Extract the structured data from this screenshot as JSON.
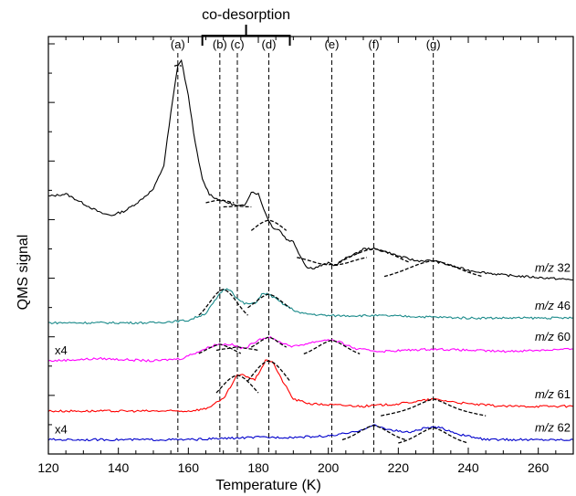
{
  "chart_data": {
    "type": "line",
    "title": "",
    "xlabel": "Temperature (K)",
    "ylabel": "QMS signal",
    "xlim": [
      120,
      270
    ],
    "x_ticks": [
      "120",
      "140",
      "160",
      "180",
      "200",
      "220",
      "240",
      "260"
    ],
    "y_tick_labels": "none",
    "grid": false,
    "top_annotation": "co-desorption",
    "peak_markers": [
      {
        "label": "(a)",
        "x": 157
      },
      {
        "label": "(b)",
        "x": 169
      },
      {
        "label": "(c)",
        "x": 174
      },
      {
        "label": "(d)",
        "x": 183
      },
      {
        "label": "(e)",
        "x": 201
      },
      {
        "label": "(f)",
        "x": 213
      },
      {
        "label": "(g)",
        "x": 230
      }
    ],
    "co_desorption_range": [
      164,
      189
    ],
    "series": [
      {
        "name": "m/z 32",
        "label_prefix": "m/z",
        "label_value": "32",
        "color": "#000000",
        "points": [
          [
            120,
            203
          ],
          [
            125,
            204
          ],
          [
            130,
            200
          ],
          [
            135,
            196
          ],
          [
            138,
            195
          ],
          [
            142,
            197
          ],
          [
            146,
            201
          ],
          [
            150,
            206
          ],
          [
            153,
            216
          ],
          [
            155,
            238
          ],
          [
            157,
            258
          ],
          [
            158,
            260
          ],
          [
            160,
            245
          ],
          [
            162,
            225
          ],
          [
            164,
            210
          ],
          [
            166,
            204
          ],
          [
            168,
            202
          ],
          [
            170,
            201
          ],
          [
            172,
            200
          ],
          [
            174,
            199
          ],
          [
            176,
            199
          ],
          [
            178,
            205
          ],
          [
            180,
            204
          ],
          [
            182,
            196
          ],
          [
            184,
            190
          ],
          [
            186,
            189
          ],
          [
            188,
            185
          ],
          [
            190,
            184
          ],
          [
            192,
            178
          ],
          [
            194,
            173
          ],
          [
            196,
            173
          ],
          [
            198,
            174
          ],
          [
            200,
            175
          ],
          [
            202,
            174
          ],
          [
            204,
            176
          ],
          [
            206,
            178
          ],
          [
            208,
            179
          ],
          [
            210,
            181
          ],
          [
            213,
            181
          ],
          [
            216,
            180
          ],
          [
            220,
            178
          ],
          [
            225,
            176
          ],
          [
            230,
            176
          ],
          [
            235,
            174
          ],
          [
            240,
            172
          ],
          [
            250,
            170
          ],
          [
            260,
            169
          ],
          [
            270,
            168
          ]
        ],
        "fits": [
          [
            156,
            157,
            6
          ],
          [
            165,
            169,
            6
          ],
          [
            170,
            174,
            6
          ],
          [
            178,
            183,
            5
          ],
          [
            191,
            201,
            6
          ],
          [
            203,
            213,
            7
          ],
          [
            216,
            230,
            7
          ]
        ]
      },
      {
        "name": "m/z 46",
        "label_prefix": "m/z",
        "label_value": "46",
        "color": "#1a8a8a",
        "points": [
          [
            120,
            150
          ],
          [
            140,
            150
          ],
          [
            150,
            150
          ],
          [
            160,
            151
          ],
          [
            165,
            154
          ],
          [
            168,
            160
          ],
          [
            170,
            164
          ],
          [
            172,
            164
          ],
          [
            174,
            160
          ],
          [
            176,
            158
          ],
          [
            179,
            158
          ],
          [
            181,
            162
          ],
          [
            183,
            162
          ],
          [
            185,
            160
          ],
          [
            188,
            157
          ],
          [
            192,
            154
          ],
          [
            200,
            153
          ],
          [
            215,
            153
          ],
          [
            240,
            152
          ],
          [
            270,
            152
          ]
        ],
        "fits": [
          [
            163,
            170,
            4
          ],
          [
            177,
            183,
            4
          ]
        ]
      },
      {
        "name": "m/z 60",
        "label_prefix": "m/z",
        "label_value": "60",
        "color": "#ff00ff",
        "scale_label": "x4",
        "points": [
          [
            120,
            134
          ],
          [
            135,
            135
          ],
          [
            150,
            134
          ],
          [
            158,
            135
          ],
          [
            163,
            138
          ],
          [
            168,
            141
          ],
          [
            172,
            141
          ],
          [
            176,
            139
          ],
          [
            180,
            143
          ],
          [
            183,
            144
          ],
          [
            186,
            142
          ],
          [
            190,
            140
          ],
          [
            196,
            142
          ],
          [
            200,
            143
          ],
          [
            203,
            142
          ],
          [
            208,
            139
          ],
          [
            215,
            138
          ],
          [
            230,
            139
          ],
          [
            250,
            138
          ],
          [
            270,
            139
          ]
        ],
        "fits": [
          [
            163,
            169,
            4
          ],
          [
            168,
            174,
            3
          ],
          [
            178,
            183,
            3
          ],
          [
            193,
            201,
            4
          ]
        ]
      },
      {
        "name": "m/z 61",
        "label_prefix": "m/z",
        "label_value": "61",
        "color": "#ff0000",
        "points": [
          [
            120,
            113
          ],
          [
            150,
            113
          ],
          [
            160,
            113
          ],
          [
            165,
            114
          ],
          [
            170,
            118
          ],
          [
            174,
            128
          ],
          [
            176,
            128
          ],
          [
            179,
            126
          ],
          [
            182,
            134
          ],
          [
            184,
            134
          ],
          [
            186,
            128
          ],
          [
            190,
            118
          ],
          [
            195,
            116
          ],
          [
            210,
            115
          ],
          [
            220,
            116
          ],
          [
            230,
            118
          ],
          [
            240,
            116
          ],
          [
            250,
            115
          ],
          [
            270,
            115
          ]
        ],
        "fits": [
          [
            168,
            174,
            5
          ],
          [
            177,
            183,
            5
          ],
          [
            215,
            230,
            4
          ]
        ]
      },
      {
        "name": "m/z 62",
        "label_prefix": "m/z",
        "label_value": "62",
        "color": "#0000cc",
        "scale_label": "x4",
        "points": [
          [
            120,
            101
          ],
          [
            150,
            101
          ],
          [
            160,
            101
          ],
          [
            170,
            101.5
          ],
          [
            180,
            102
          ],
          [
            190,
            102
          ],
          [
            200,
            102.5
          ],
          [
            207,
            104
          ],
          [
            213,
            107
          ],
          [
            218,
            105
          ],
          [
            223,
            104
          ],
          [
            228,
            106
          ],
          [
            232,
            106
          ],
          [
            238,
            103
          ],
          [
            245,
            101
          ],
          [
            270,
            101
          ]
        ],
        "fits": [
          [
            204,
            213,
            4
          ],
          [
            220,
            230,
            4
          ]
        ]
      }
    ]
  }
}
